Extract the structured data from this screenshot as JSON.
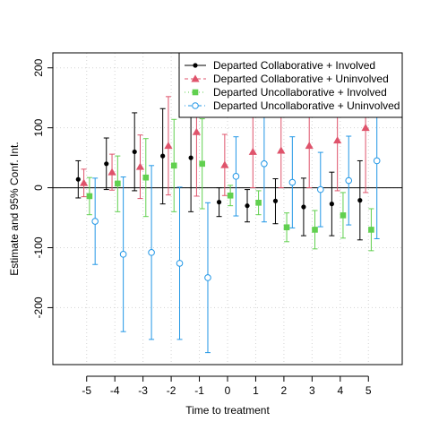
{
  "chart_data": {
    "type": "scatter",
    "title": "",
    "xlabel": "Time to treatment",
    "ylabel": "Estimate and 95% Conf. Int.",
    "xlim": [
      -6.2,
      6.2
    ],
    "ylim": [
      -295,
      225
    ],
    "x_ticks": [
      -5,
      -4,
      -3,
      -2,
      -1,
      0,
      1,
      2,
      3,
      4,
      5
    ],
    "x_tick_labels": [
      "-5",
      "-4",
      "-3",
      "-2",
      "-1",
      "0",
      "1",
      "2",
      "3",
      "4",
      "5"
    ],
    "y_ticks": [
      -200,
      -100,
      0,
      100,
      200
    ],
    "y_tick_labels": [
      "-200",
      "-100",
      "0",
      "100",
      "200"
    ],
    "grid": true,
    "zero_line": true,
    "legend_position": "top-right",
    "series": [
      {
        "name": "Departed Collaborative + Involved",
        "color": "#000000",
        "marker": "filled-circle",
        "line_style": "solid",
        "points": [
          {
            "x": -5,
            "y": 14,
            "lo": -17,
            "hi": 45
          },
          {
            "x": -4,
            "y": 40,
            "lo": -3,
            "hi": 83
          },
          {
            "x": -3,
            "y": 60,
            "lo": -5,
            "hi": 125
          },
          {
            "x": -2,
            "y": 53,
            "lo": -27,
            "hi": 132
          },
          {
            "x": -1,
            "y": 50,
            "lo": -40,
            "hi": 140
          },
          {
            "x": 0,
            "y": -24,
            "lo": -48,
            "hi": 0
          },
          {
            "x": 1,
            "y": -30,
            "lo": -57,
            "hi": -3
          },
          {
            "x": 2,
            "y": -22,
            "lo": -60,
            "hi": 15
          },
          {
            "x": 3,
            "y": -32,
            "lo": -80,
            "hi": 16
          },
          {
            "x": 4,
            "y": -27,
            "lo": -80,
            "hi": 26
          },
          {
            "x": 5,
            "y": -21,
            "lo": -87,
            "hi": 45
          }
        ]
      },
      {
        "name": "Departed Collaborative + Uninvolved",
        "color": "#DF536B",
        "marker": "filled-triangle",
        "line_style": "dashed",
        "points": [
          {
            "x": -5,
            "y": 8,
            "lo": -15,
            "hi": 31
          },
          {
            "x": -4,
            "y": 26,
            "lo": -4,
            "hi": 56
          },
          {
            "x": -3,
            "y": 35,
            "lo": -18,
            "hi": 88
          },
          {
            "x": -2,
            "y": 70,
            "lo": -12,
            "hi": 152
          },
          {
            "x": -1,
            "y": 93,
            "lo": -14,
            "hi": 200
          },
          {
            "x": 0,
            "y": 38,
            "lo": -13,
            "hi": 89
          },
          {
            "x": 1,
            "y": 60,
            "lo": 0,
            "hi": 120
          },
          {
            "x": 2,
            "y": 62,
            "lo": 0,
            "hi": 125
          },
          {
            "x": 3,
            "y": 70,
            "lo": 0,
            "hi": 140
          },
          {
            "x": 4,
            "y": 79,
            "lo": -5,
            "hi": 163
          },
          {
            "x": 5,
            "y": 100,
            "lo": -8,
            "hi": 205
          }
        ]
      },
      {
        "name": "Departed Uncollaborative + Involved",
        "color": "#61D04F",
        "marker": "filled-square",
        "line_style": "dotted",
        "points": [
          {
            "x": -5,
            "y": -14,
            "lo": -45,
            "hi": 17
          },
          {
            "x": -4,
            "y": 7,
            "lo": -40,
            "hi": 53
          },
          {
            "x": -3,
            "y": 17,
            "lo": -48,
            "hi": 82
          },
          {
            "x": -2,
            "y": 37,
            "lo": -40,
            "hi": 114
          },
          {
            "x": -1,
            "y": 40,
            "lo": -35,
            "hi": 115
          },
          {
            "x": 0,
            "y": -13,
            "lo": -30,
            "hi": 4
          },
          {
            "x": 1,
            "y": -25,
            "lo": -45,
            "hi": -5
          },
          {
            "x": 2,
            "y": -66,
            "lo": -90,
            "hi": -42
          },
          {
            "x": 3,
            "y": -70,
            "lo": -102,
            "hi": -38
          },
          {
            "x": 4,
            "y": -46,
            "lo": -84,
            "hi": -8
          },
          {
            "x": 5,
            "y": -70,
            "lo": -105,
            "hi": -35
          }
        ]
      },
      {
        "name": "Departed Uncollaborative + Uninvolved",
        "color": "#2297E6",
        "marker": "open-circle",
        "line_style": "dot-dash",
        "points": [
          {
            "x": -5,
            "y": -56,
            "lo": -128,
            "hi": 16
          },
          {
            "x": -4,
            "y": -111,
            "lo": -240,
            "hi": 18
          },
          {
            "x": -3,
            "y": -108,
            "lo": -253,
            "hi": 37
          },
          {
            "x": -2,
            "y": -126,
            "lo": -253,
            "hi": 1
          },
          {
            "x": -1,
            "y": -150,
            "lo": -275,
            "hi": -25
          },
          {
            "x": 0,
            "y": 19,
            "lo": -47,
            "hi": 85
          },
          {
            "x": 1,
            "y": 40,
            "lo": -57,
            "hi": 137
          },
          {
            "x": 2,
            "y": 9,
            "lo": -67,
            "hi": 85
          },
          {
            "x": 3,
            "y": -3,
            "lo": -65,
            "hi": 59
          },
          {
            "x": 4,
            "y": 12,
            "lo": -62,
            "hi": 86
          },
          {
            "x": 5,
            "y": 45,
            "lo": -85,
            "hi": 175
          }
        ]
      }
    ]
  }
}
